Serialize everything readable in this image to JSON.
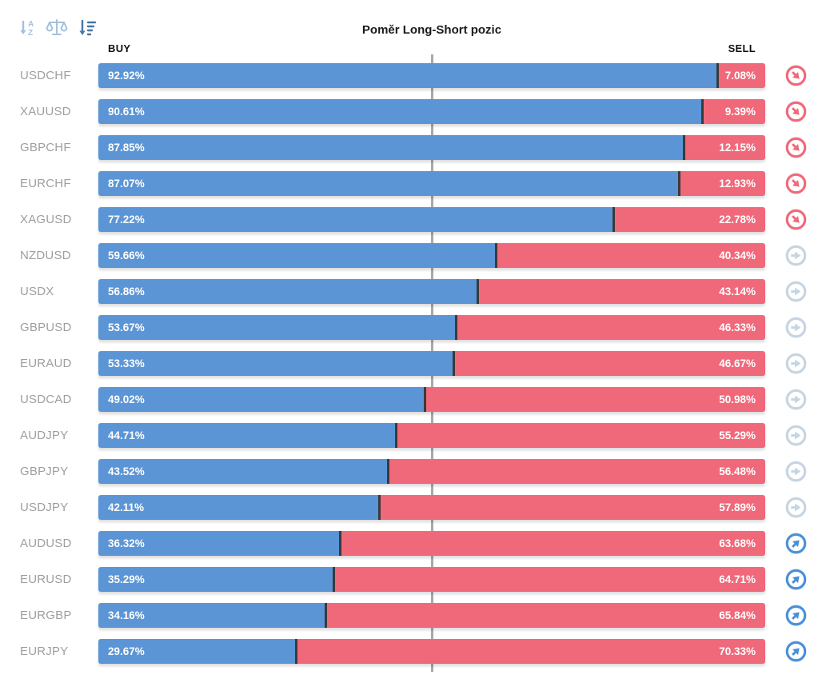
{
  "title": "Poměr Long-Short pozic",
  "column_headers": {
    "buy": "BUY",
    "sell": "SELL"
  },
  "toolbar": {
    "sort_alpha_label": "sort-alphabetical",
    "sort_balance_label": "sort-by-balance",
    "sort_amount_label": "sort-by-value"
  },
  "colors": {
    "buy_bar": "#5b95d5",
    "sell_bar": "#f0697a",
    "bar_divider": "#3a3a3a",
    "center_line": "#a8a8a8",
    "pair_label": "#9e9e9e",
    "signal_down": "#f0697a",
    "signal_neutral": "#c7d4e2",
    "signal_up": "#4a90d9",
    "sort_icon_inactive": "#a3c0dd",
    "sort_icon_active": "#4677a8"
  },
  "chart_data": {
    "type": "bar",
    "orientation": "horizontal-stacked",
    "title": "Poměr Long-Short pozic",
    "categories": [
      "USDCHF",
      "XAUUSD",
      "GBPCHF",
      "EURCHF",
      "XAGUSD",
      "NZDUSD",
      "USDX",
      "GBPUSD",
      "EURAUD",
      "USDCAD",
      "AUDJPY",
      "GBPJPY",
      "USDJPY",
      "AUDUSD",
      "EURUSD",
      "EURGBP",
      "EURJPY"
    ],
    "series": [
      {
        "name": "BUY",
        "color": "#5b95d5",
        "values": [
          92.92,
          90.61,
          87.85,
          87.07,
          77.22,
          59.66,
          56.86,
          53.67,
          53.33,
          49.02,
          44.71,
          43.52,
          42.11,
          36.32,
          35.29,
          34.16,
          29.67
        ]
      },
      {
        "name": "SELL",
        "color": "#f0697a",
        "values": [
          7.08,
          9.39,
          12.15,
          12.93,
          22.78,
          40.34,
          43.14,
          46.33,
          46.67,
          50.98,
          55.29,
          56.48,
          57.89,
          63.68,
          64.71,
          65.84,
          70.33
        ]
      }
    ],
    "xlim": [
      0,
      100
    ],
    "center_marker": 50,
    "legend_position": "top (BUY left, SELL right)",
    "grid": false
  },
  "rows": [
    {
      "pair": "USDCHF",
      "buy": 92.92,
      "buy_label": "92.92%",
      "sell_label": "7.08%",
      "signal": "down"
    },
    {
      "pair": "XAUUSD",
      "buy": 90.61,
      "buy_label": "90.61%",
      "sell_label": "9.39%",
      "signal": "down"
    },
    {
      "pair": "GBPCHF",
      "buy": 87.85,
      "buy_label": "87.85%",
      "sell_label": "12.15%",
      "signal": "down"
    },
    {
      "pair": "EURCHF",
      "buy": 87.07,
      "buy_label": "87.07%",
      "sell_label": "12.93%",
      "signal": "down"
    },
    {
      "pair": "XAGUSD",
      "buy": 77.22,
      "buy_label": "77.22%",
      "sell_label": "22.78%",
      "signal": "down"
    },
    {
      "pair": "NZDUSD",
      "buy": 59.66,
      "buy_label": "59.66%",
      "sell_label": "40.34%",
      "signal": "neutral"
    },
    {
      "pair": "USDX",
      "buy": 56.86,
      "buy_label": "56.86%",
      "sell_label": "43.14%",
      "signal": "neutral"
    },
    {
      "pair": "GBPUSD",
      "buy": 53.67,
      "buy_label": "53.67%",
      "sell_label": "46.33%",
      "signal": "neutral"
    },
    {
      "pair": "EURAUD",
      "buy": 53.33,
      "buy_label": "53.33%",
      "sell_label": "46.67%",
      "signal": "neutral"
    },
    {
      "pair": "USDCAD",
      "buy": 49.02,
      "buy_label": "49.02%",
      "sell_label": "50.98%",
      "signal": "neutral"
    },
    {
      "pair": "AUDJPY",
      "buy": 44.71,
      "buy_label": "44.71%",
      "sell_label": "55.29%",
      "signal": "neutral"
    },
    {
      "pair": "GBPJPY",
      "buy": 43.52,
      "buy_label": "43.52%",
      "sell_label": "56.48%",
      "signal": "neutral"
    },
    {
      "pair": "USDJPY",
      "buy": 42.11,
      "buy_label": "42.11%",
      "sell_label": "57.89%",
      "signal": "neutral"
    },
    {
      "pair": "AUDUSD",
      "buy": 36.32,
      "buy_label": "36.32%",
      "sell_label": "63.68%",
      "signal": "up"
    },
    {
      "pair": "EURUSD",
      "buy": 35.29,
      "buy_label": "35.29%",
      "sell_label": "64.71%",
      "signal": "up"
    },
    {
      "pair": "EURGBP",
      "buy": 34.16,
      "buy_label": "34.16%",
      "sell_label": "65.84%",
      "signal": "up"
    },
    {
      "pair": "EURJPY",
      "buy": 29.67,
      "buy_label": "29.67%",
      "sell_label": "70.33%",
      "signal": "up"
    }
  ]
}
